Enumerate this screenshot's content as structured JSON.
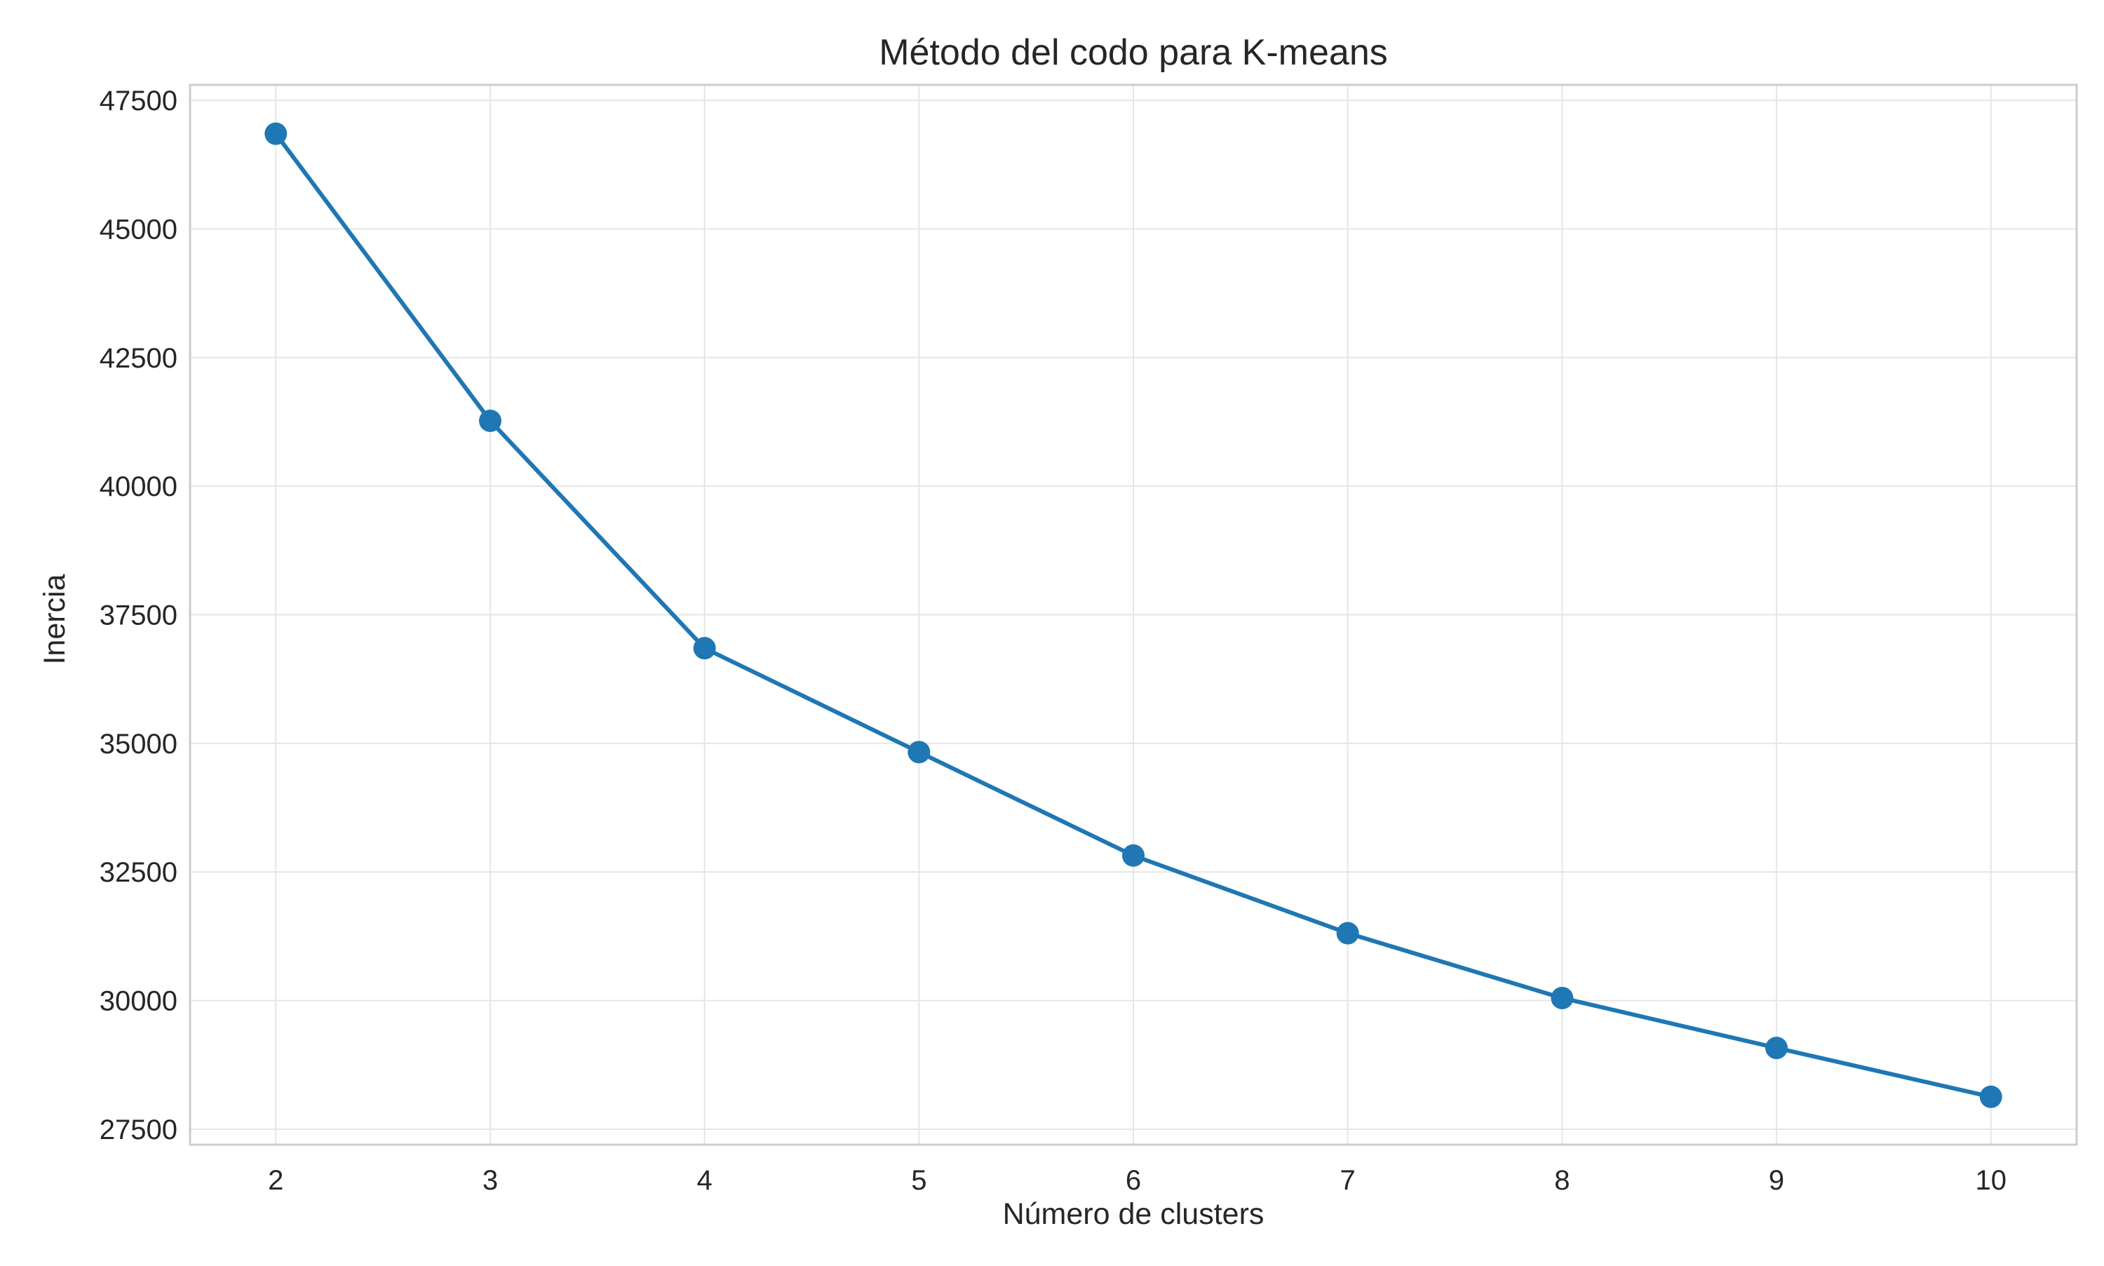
{
  "chart_data": {
    "type": "line",
    "title": "Método del codo para K-means",
    "xlabel": "Número de clusters",
    "ylabel": "Inercia",
    "x": [
      2,
      3,
      4,
      5,
      6,
      7,
      8,
      9,
      10
    ],
    "series": [
      {
        "values": [
          46850,
          41270,
          36850,
          34830,
          32820,
          31310,
          30050,
          29080,
          28130
        ],
        "color": "#1f77b4",
        "marker": "circle"
      }
    ],
    "xlim": [
      1.6,
      10.4
    ],
    "ylim": [
      27200,
      47800
    ],
    "xticks": [
      2,
      3,
      4,
      5,
      6,
      7,
      8,
      9,
      10
    ],
    "yticks": [
      27500,
      30000,
      32500,
      35000,
      37500,
      40000,
      42500,
      45000,
      47500
    ],
    "grid": true,
    "legend": "none",
    "colors": {
      "line": "#1f77b4",
      "grid": "#e6e6e6",
      "frame": "#cccccc",
      "text": "#262626"
    }
  }
}
